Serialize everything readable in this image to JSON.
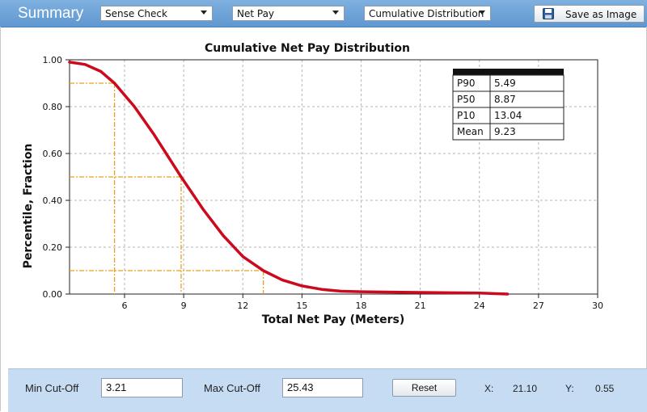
{
  "header": {
    "title": "Summary",
    "dropdown1": "Sense Check",
    "dropdown2": "Net Pay",
    "dropdown3": "Cumulative Distribution",
    "save_label": "Save as Image"
  },
  "chart_data": {
    "type": "line",
    "title": "Cumulative Net Pay Distribution",
    "xlabel": "Total Net Pay (Meters)",
    "ylabel": "Percentile, Fraction",
    "xlim": [
      3.21,
      30
    ],
    "ylim": [
      0,
      1
    ],
    "x_ticks": [
      6,
      9,
      12,
      15,
      18,
      21,
      24,
      27,
      30
    ],
    "y_ticks": [
      0,
      0.2,
      0.4,
      0.6,
      0.8,
      1.0
    ],
    "y_tick_labels": [
      "0.00",
      "0.20",
      "0.40",
      "0.60",
      "0.80",
      "1.00"
    ],
    "grid": true,
    "series": [
      {
        "color": "#cc0a1e",
        "x": [
          3.21,
          4.0,
          4.8,
          5.49,
          6.5,
          7.5,
          8.87,
          10.0,
          11.0,
          12.0,
          13.04,
          14.0,
          15.0,
          16.0,
          17.0,
          18.0,
          20.0,
          22.0,
          24.0,
          25.43
        ],
        "y": [
          0.99,
          0.98,
          0.95,
          0.9,
          0.8,
          0.68,
          0.5,
          0.36,
          0.25,
          0.16,
          0.1,
          0.06,
          0.035,
          0.02,
          0.012,
          0.01,
          0.008,
          0.006,
          0.004,
          0.0
        ]
      }
    ],
    "markers": [
      {
        "x": 5.49,
        "y": 0.9
      },
      {
        "x": 8.87,
        "y": 0.5
      },
      {
        "x": 13.04,
        "y": 0.1
      }
    ],
    "marker_color": "#e8a020",
    "stats_table": [
      {
        "label": "P90",
        "value": "5.49"
      },
      {
        "label": "P50",
        "value": "8.87"
      },
      {
        "label": "P10",
        "value": "13.04"
      },
      {
        "label": "Mean",
        "value": "9.23"
      }
    ]
  },
  "controls": {
    "min_label": "Min Cut-Off",
    "min_value": "3.21",
    "max_label": "Max Cut-Off",
    "max_value": "25.43",
    "reset_label": "Reset",
    "x_label": "X:",
    "x_value": "21.10",
    "y_label": "Y:",
    "y_value": "0.55"
  }
}
